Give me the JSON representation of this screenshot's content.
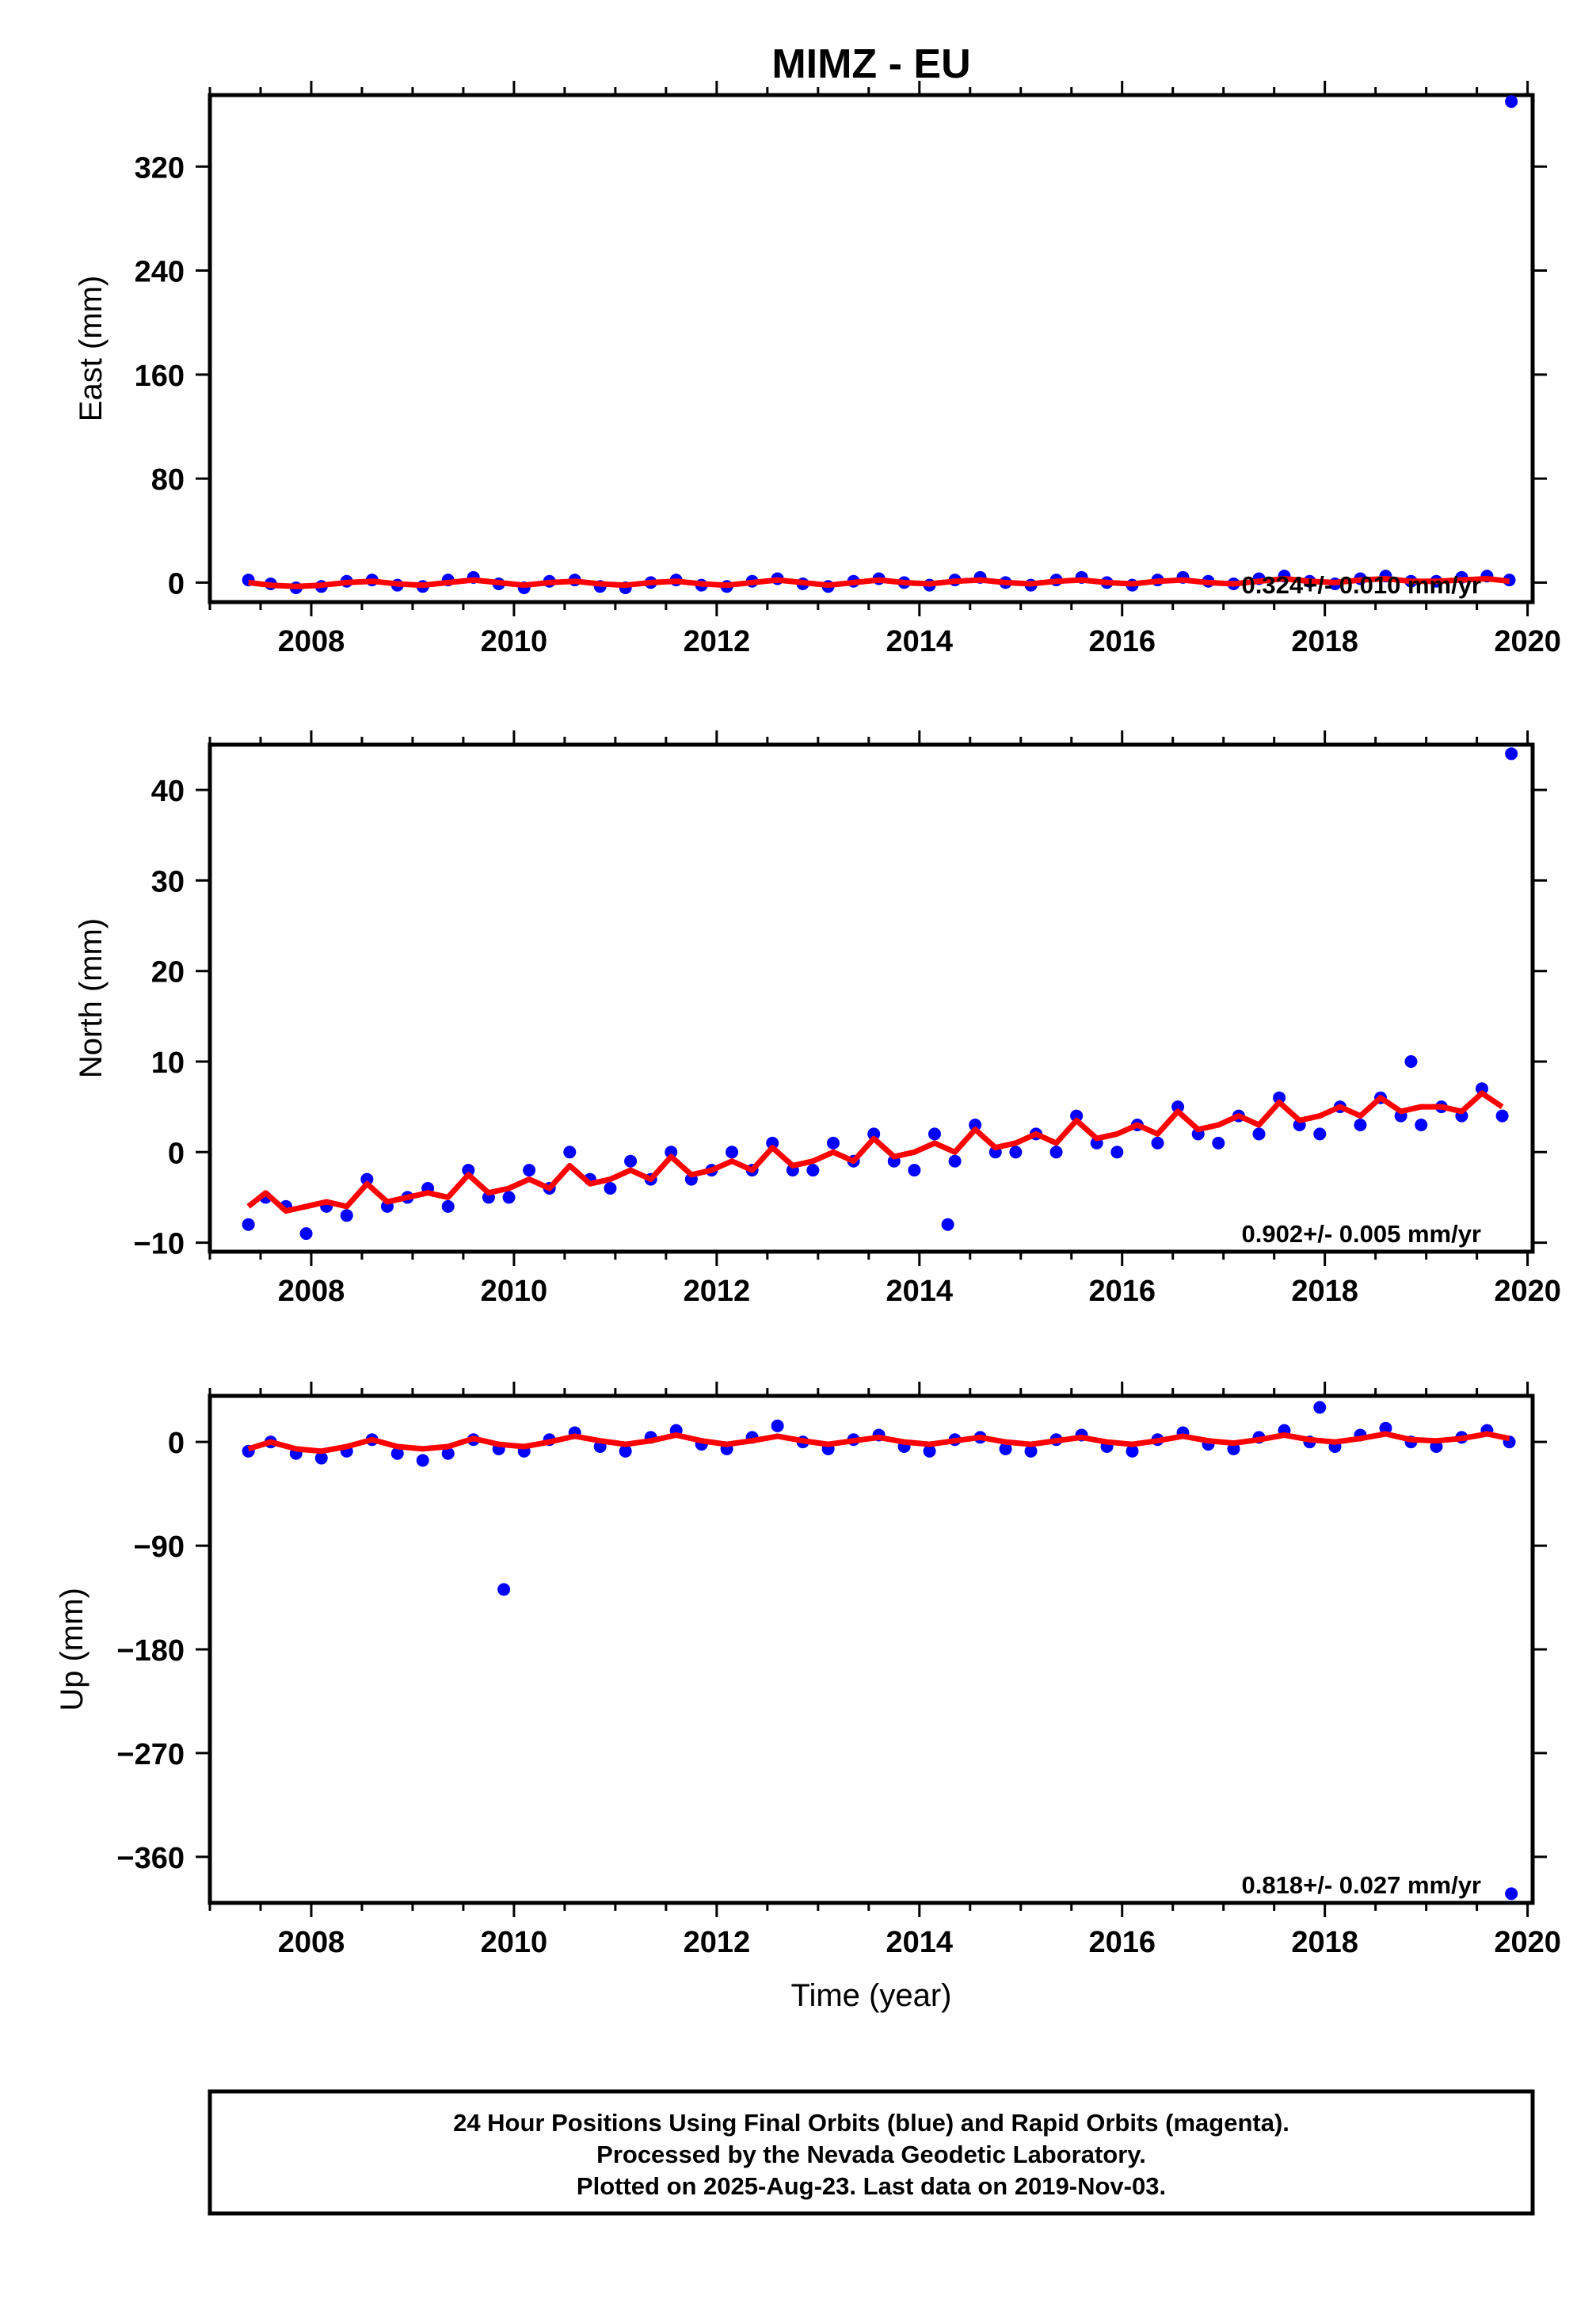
{
  "title": "MIMZ - EU",
  "colors": {
    "final": "#0000ff",
    "model": "#ff0000",
    "frame": "#000000"
  },
  "chart_data": [
    {
      "type": "scatter",
      "ylabel": "East (mm)",
      "xlabel": "",
      "xlim": [
        2007.0,
        2020.05
      ],
      "ylim": [
        -15,
        375
      ],
      "xticks": [
        2008,
        2010,
        2012,
        2014,
        2016,
        2018,
        2020
      ],
      "yticks": [
        0,
        80,
        160,
        240,
        320
      ],
      "rate_text": "0.324+/- 0.010 mm/yr",
      "series": [
        {
          "role": "daily_positions",
          "x": [
            2007.38,
            2007.6,
            2007.85,
            2008.1,
            2008.35,
            2008.6,
            2008.85,
            2009.1,
            2009.35,
            2009.6,
            2009.85,
            2010.1,
            2010.35,
            2010.6,
            2010.85,
            2011.1,
            2011.35,
            2011.6,
            2011.85,
            2012.1,
            2012.35,
            2012.6,
            2012.85,
            2013.1,
            2013.35,
            2013.6,
            2013.85,
            2014.1,
            2014.35,
            2014.6,
            2014.85,
            2015.1,
            2015.35,
            2015.6,
            2015.85,
            2016.1,
            2016.35,
            2016.6,
            2016.85,
            2017.1,
            2017.35,
            2017.6,
            2017.85,
            2018.1,
            2018.35,
            2018.6,
            2018.85,
            2019.1,
            2019.35,
            2019.6,
            2019.82,
            2019.84
          ],
          "y": [
            2,
            -1,
            -4,
            -3,
            1,
            2,
            -2,
            -3,
            2,
            4,
            -1,
            -4,
            1,
            2,
            -3,
            -4,
            0,
            2,
            -2,
            -3,
            1,
            3,
            -1,
            -3,
            1,
            3,
            0,
            -2,
            2,
            4,
            0,
            -2,
            2,
            4,
            0,
            -2,
            2,
            4,
            1,
            -1,
            3,
            5,
            1,
            -1,
            3,
            5,
            1,
            1,
            4,
            5,
            2,
            370
          ]
        },
        {
          "role": "model_fit",
          "x": [
            2007.38,
            2007.6,
            2007.85,
            2008.1,
            2008.35,
            2008.6,
            2008.85,
            2009.1,
            2009.35,
            2009.6,
            2009.85,
            2010.1,
            2010.35,
            2010.6,
            2010.85,
            2011.1,
            2011.35,
            2011.6,
            2011.85,
            2012.1,
            2012.35,
            2012.6,
            2012.85,
            2013.1,
            2013.35,
            2013.6,
            2013.85,
            2014.1,
            2014.35,
            2014.6,
            2014.85,
            2015.1,
            2015.35,
            2015.6,
            2015.85,
            2016.1,
            2016.35,
            2016.6,
            2016.85,
            2017.1,
            2017.35,
            2017.6,
            2017.85,
            2018.1,
            2018.35,
            2018.6,
            2018.85,
            2019.1,
            2019.35,
            2019.6,
            2019.82
          ],
          "y": [
            0,
            -2,
            -3,
            -2,
            0,
            1,
            -1,
            -2,
            0,
            2,
            0,
            -2,
            0,
            1,
            -1,
            -2,
            0,
            1,
            -1,
            -2,
            0,
            2,
            0,
            -2,
            0,
            2,
            0,
            -1,
            1,
            2,
            0,
            -1,
            1,
            2,
            0,
            -1,
            1,
            2,
            0,
            -1,
            1,
            3,
            1,
            0,
            2,
            3,
            1,
            1,
            2,
            3,
            1
          ]
        }
      ]
    },
    {
      "type": "scatter",
      "ylabel": "North (mm)",
      "xlabel": "",
      "xlim": [
        2007.0,
        2020.05
      ],
      "ylim": [
        -11,
        45
      ],
      "xticks": [
        2008,
        2010,
        2012,
        2014,
        2016,
        2018,
        2020
      ],
      "yticks": [
        -10,
        0,
        10,
        20,
        30,
        40
      ],
      "rate_text": "0.902+/- 0.005 mm/yr",
      "series": [
        {
          "role": "daily_positions",
          "x": [
            2007.38,
            2007.55,
            2007.75,
            2007.95,
            2008.15,
            2008.35,
            2008.55,
            2008.75,
            2008.95,
            2009.15,
            2009.35,
            2009.55,
            2009.75,
            2009.95,
            2010.15,
            2010.35,
            2010.55,
            2010.75,
            2010.95,
            2011.15,
            2011.35,
            2011.55,
            2011.75,
            2011.95,
            2012.15,
            2012.35,
            2012.55,
            2012.75,
            2012.95,
            2013.15,
            2013.35,
            2013.55,
            2013.75,
            2013.95,
            2014.15,
            2014.28,
            2014.35,
            2014.55,
            2014.75,
            2014.95,
            2015.15,
            2015.35,
            2015.55,
            2015.75,
            2015.95,
            2016.15,
            2016.35,
            2016.55,
            2016.75,
            2016.95,
            2017.15,
            2017.35,
            2017.55,
            2017.75,
            2017.95,
            2018.15,
            2018.35,
            2018.55,
            2018.75,
            2018.85,
            2018.95,
            2019.15,
            2019.35,
            2019.55,
            2019.75,
            2019.84
          ],
          "y": [
            -8,
            -5,
            -6,
            -9,
            -6,
            -7,
            -3,
            -6,
            -5,
            -4,
            -6,
            -2,
            -5,
            -5,
            -2,
            -4,
            0,
            -3,
            -4,
            -1,
            -3,
            0,
            -3,
            -2,
            0,
            -2,
            1,
            -2,
            -2,
            1,
            -1,
            2,
            -1,
            -2,
            2,
            -8,
            -1,
            3,
            0,
            0,
            2,
            0,
            4,
            1,
            0,
            3,
            1,
            5,
            2,
            1,
            4,
            2,
            6,
            3,
            2,
            5,
            3,
            6,
            4,
            10,
            3,
            5,
            4,
            7,
            4,
            44
          ]
        },
        {
          "role": "model_fit",
          "x": [
            2007.38,
            2007.55,
            2007.75,
            2007.95,
            2008.15,
            2008.35,
            2008.55,
            2008.75,
            2008.95,
            2009.15,
            2009.35,
            2009.55,
            2009.75,
            2009.95,
            2010.15,
            2010.35,
            2010.55,
            2010.75,
            2010.95,
            2011.15,
            2011.35,
            2011.55,
            2011.75,
            2011.95,
            2012.15,
            2012.35,
            2012.55,
            2012.75,
            2012.95,
            2013.15,
            2013.35,
            2013.55,
            2013.75,
            2013.95,
            2014.15,
            2014.35,
            2014.55,
            2014.75,
            2014.95,
            2015.15,
            2015.35,
            2015.55,
            2015.75,
            2015.95,
            2016.15,
            2016.35,
            2016.55,
            2016.75,
            2016.95,
            2017.15,
            2017.35,
            2017.55,
            2017.75,
            2017.95,
            2018.15,
            2018.35,
            2018.55,
            2018.75,
            2018.95,
            2019.15,
            2019.35,
            2019.55,
            2019.75
          ],
          "y": [
            -6,
            -4.5,
            -6.5,
            -6,
            -5.5,
            -6,
            -3.5,
            -5.5,
            -5,
            -4.5,
            -5,
            -2.5,
            -4.5,
            -4,
            -3,
            -4,
            -1.5,
            -3.5,
            -3,
            -2,
            -3,
            -0.5,
            -2.5,
            -2,
            -1,
            -2,
            0.5,
            -1.5,
            -1,
            0,
            -1,
            1.5,
            -0.5,
            0,
            1,
            0,
            2.5,
            0.5,
            1,
            2,
            1,
            3.5,
            1.5,
            2,
            3,
            2,
            4.5,
            2.5,
            3,
            4,
            3,
            5.5,
            3.5,
            4,
            5,
            4,
            6,
            4.5,
            5,
            5,
            4.5,
            6.5,
            5
          ]
        }
      ]
    },
    {
      "type": "scatter",
      "ylabel": "Up (mm)",
      "xlabel": "Time (year)",
      "xlim": [
        2007.0,
        2020.05
      ],
      "ylim": [
        -400,
        40
      ],
      "xticks": [
        2008,
        2010,
        2012,
        2014,
        2016,
        2018,
        2020
      ],
      "yticks": [
        -360,
        -270,
        -180,
        -90,
        0
      ],
      "rate_text": "0.818+/- 0.027 mm/yr",
      "series": [
        {
          "role": "daily_positions",
          "x": [
            2007.38,
            2007.6,
            2007.85,
            2008.1,
            2008.35,
            2008.6,
            2008.85,
            2009.1,
            2009.35,
            2009.6,
            2009.85,
            2009.9,
            2010.1,
            2010.35,
            2010.6,
            2010.85,
            2011.1,
            2011.35,
            2011.6,
            2011.85,
            2012.1,
            2012.35,
            2012.6,
            2012.85,
            2013.1,
            2013.35,
            2013.6,
            2013.85,
            2014.1,
            2014.35,
            2014.6,
            2014.85,
            2015.1,
            2015.35,
            2015.6,
            2015.85,
            2016.1,
            2016.35,
            2016.6,
            2016.85,
            2017.1,
            2017.35,
            2017.6,
            2017.85,
            2017.95,
            2018.1,
            2018.35,
            2018.6,
            2018.85,
            2019.1,
            2019.35,
            2019.6,
            2019.82,
            2019.84
          ],
          "y": [
            -8,
            0,
            -10,
            -14,
            -8,
            2,
            -10,
            -16,
            -10,
            2,
            -6,
            -128,
            -8,
            2,
            8,
            -4,
            -8,
            4,
            10,
            -2,
            -6,
            4,
            14,
            0,
            -6,
            2,
            6,
            -4,
            -8,
            2,
            4,
            -6,
            -8,
            2,
            6,
            -4,
            -8,
            2,
            8,
            -2,
            -6,
            4,
            10,
            0,
            30,
            -4,
            6,
            12,
            0,
            -4,
            4,
            10,
            0,
            -392
          ]
        },
        {
          "role": "model_fit",
          "x": [
            2007.38,
            2007.6,
            2007.85,
            2008.1,
            2008.35,
            2008.6,
            2008.85,
            2009.1,
            2009.35,
            2009.6,
            2009.85,
            2010.1,
            2010.35,
            2010.6,
            2010.85,
            2011.1,
            2011.35,
            2011.6,
            2011.85,
            2012.1,
            2012.35,
            2012.6,
            2012.85,
            2013.1,
            2013.35,
            2013.6,
            2013.85,
            2014.1,
            2014.35,
            2014.6,
            2014.85,
            2015.1,
            2015.35,
            2015.6,
            2015.85,
            2016.1,
            2016.35,
            2016.6,
            2016.85,
            2017.1,
            2017.35,
            2017.6,
            2017.85,
            2018.1,
            2018.35,
            2018.6,
            2018.85,
            2019.1,
            2019.35,
            2019.6,
            2019.82
          ],
          "y": [
            -6,
            0,
            -6,
            -8,
            -4,
            2,
            -4,
            -6,
            -4,
            3,
            -2,
            -4,
            0,
            5,
            1,
            -2,
            1,
            6,
            1,
            -2,
            1,
            5,
            1,
            -2,
            1,
            4,
            0,
            -2,
            1,
            4,
            0,
            -2,
            1,
            4,
            0,
            -2,
            1,
            5,
            1,
            -1,
            2,
            6,
            2,
            0,
            3,
            7,
            2,
            1,
            3,
            7,
            3
          ]
        }
      ]
    }
  ],
  "footer": {
    "line1": "24 Hour Positions Using Final Orbits (blue) and Rapid Orbits (magenta).",
    "line2": "Processed by the Nevada Geodetic Laboratory.",
    "line3": "Plotted on 2025-Aug-23. Last data on 2019-Nov-03."
  }
}
